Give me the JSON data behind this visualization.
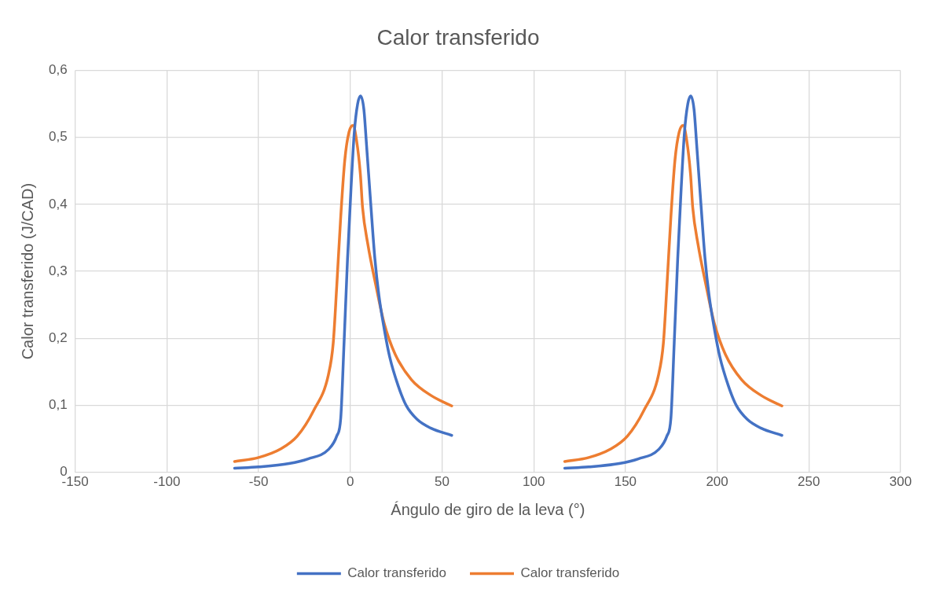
{
  "chart_data": {
    "type": "line",
    "title": "Calor transferido",
    "xlabel": "Ángulo de giro de la leva (°)",
    "ylabel": "Calor transferido (J/CAD)",
    "xlim": [
      -150,
      300
    ],
    "xticks": [
      -150,
      -100,
      -50,
      0,
      50,
      100,
      150,
      200,
      250,
      300
    ],
    "ylim": [
      0,
      0.6
    ],
    "yticks": [
      0,
      {
        "value": 0.1,
        "label": "0,1"
      },
      {
        "value": 0.2,
        "label": "0,2"
      },
      {
        "value": 0.3,
        "label": "0,3"
      },
      {
        "value": 0.4,
        "label": "0,4"
      },
      {
        "value": 0.5,
        "label": "0,5"
      },
      {
        "value": 0.6,
        "label": "0,6"
      }
    ],
    "grid": true,
    "legend": "bottom",
    "marker": "none",
    "line_style": "solid",
    "series": [
      {
        "name": "Calor transferido",
        "color": "#4472c4",
        "x": [
          -63.1,
          -50,
          -33.4,
          -23,
          -11.9,
          -7.4,
          -5.2,
          -3.4,
          -1.5,
          0.4,
          2.2,
          4.0,
          5.6,
          7.4,
          8.9,
          11.1,
          13.4,
          15.6,
          18.5,
          21.5,
          26,
          30.4,
          36.4,
          43.8,
          55.3
        ],
        "values": [
          0.006,
          0.008,
          0.013,
          0.02,
          0.034,
          0.054,
          0.081,
          0.193,
          0.319,
          0.424,
          0.508,
          0.55,
          0.562,
          0.542,
          0.487,
          0.403,
          0.319,
          0.264,
          0.214,
          0.172,
          0.13,
          0.1,
          0.079,
          0.066,
          0.055
        ]
      },
      {
        "name": "Calor transferido",
        "color": "#ed7d31",
        "x": [
          -63.1,
          -50,
          -37.8,
          -28.9,
          -20,
          -11.9,
          -9.3,
          -7.4,
          -5.2,
          -3.0,
          -0.7,
          1.5,
          3.4,
          5.5,
          6.7,
          9.6,
          14.1,
          18.5,
          24.5,
          33.4,
          43.8,
          55.3
        ],
        "values": [
          0.016,
          0.022,
          0.035,
          0.054,
          0.092,
          0.146,
          0.193,
          0.277,
          0.382,
          0.466,
          0.508,
          0.518,
          0.496,
          0.445,
          0.395,
          0.34,
          0.277,
          0.222,
          0.176,
          0.138,
          0.115,
          0.099
        ]
      },
      {
        "color": "#4472c4",
        "x": [
          116.9,
          130,
          146.6,
          157,
          168.1,
          172.6,
          174.8,
          176.6,
          178.5,
          180.4,
          182.2,
          184,
          185.6,
          187.4,
          188.9,
          191.1,
          193.4,
          195.6,
          198.5,
          201.5,
          206,
          210.4,
          216.4,
          223.8,
          235.3
        ],
        "values": [
          0.006,
          0.008,
          0.013,
          0.02,
          0.034,
          0.054,
          0.081,
          0.193,
          0.319,
          0.424,
          0.508,
          0.55,
          0.562,
          0.542,
          0.487,
          0.403,
          0.319,
          0.264,
          0.214,
          0.172,
          0.13,
          0.1,
          0.079,
          0.066,
          0.055
        ]
      },
      {
        "color": "#ed7d31",
        "x": [
          116.9,
          130,
          142.2,
          151.1,
          160,
          168.1,
          170.7,
          172.6,
          174.8,
          177,
          179.3,
          181.5,
          183.4,
          185.5,
          186.7,
          189.6,
          194.1,
          198.5,
          204.5,
          213.4,
          223.8,
          235.3
        ],
        "values": [
          0.016,
          0.022,
          0.035,
          0.054,
          0.092,
          0.146,
          0.193,
          0.277,
          0.382,
          0.466,
          0.508,
          0.518,
          0.496,
          0.445,
          0.395,
          0.34,
          0.277,
          0.222,
          0.176,
          0.138,
          0.115,
          0.099
        ]
      }
    ]
  }
}
